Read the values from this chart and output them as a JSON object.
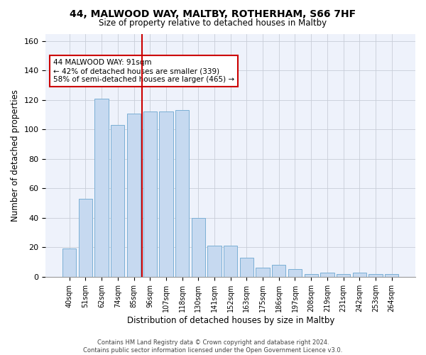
{
  "title1": "44, MALWOOD WAY, MALTBY, ROTHERHAM, S66 7HF",
  "title2": "Size of property relative to detached houses in Maltby",
  "xlabel": "Distribution of detached houses by size in Maltby",
  "ylabel": "Number of detached properties",
  "categories": [
    "40sqm",
    "51sqm",
    "62sqm",
    "74sqm",
    "85sqm",
    "96sqm",
    "107sqm",
    "118sqm",
    "130sqm",
    "141sqm",
    "152sqm",
    "163sqm",
    "175sqm",
    "186sqm",
    "197sqm",
    "208sqm",
    "219sqm",
    "231sqm",
    "242sqm",
    "253sqm",
    "264sqm"
  ],
  "values": [
    19,
    53,
    121,
    103,
    111,
    112,
    112,
    113,
    40,
    21,
    21,
    13,
    6,
    8,
    5,
    2,
    3,
    2,
    3,
    2,
    2
  ],
  "bar_color": "#c6d9f0",
  "bar_edge_color": "#7bafd4",
  "vline_color": "#cc0000",
  "annotation_text": "44 MALWOOD WAY: 91sqm\n← 42% of detached houses are smaller (339)\n58% of semi-detached houses are larger (465) →",
  "annotation_box_color": "#ffffff",
  "annotation_box_edge_color": "#cc0000",
  "ylim": [
    0,
    165
  ],
  "yticks": [
    0,
    20,
    40,
    60,
    80,
    100,
    120,
    140,
    160
  ],
  "footer1": "Contains HM Land Registry data © Crown copyright and database right 2024.",
  "footer2": "Contains public sector information licensed under the Open Government Licence v3.0.",
  "background_color": "#eef2fb"
}
